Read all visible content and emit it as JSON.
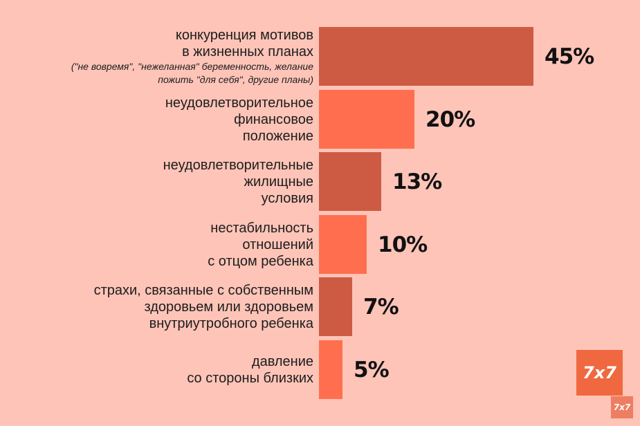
{
  "chart_data": {
    "type": "bar",
    "orientation": "horizontal",
    "title": "",
    "xlabel": "",
    "ylabel": "",
    "categories": [
      "конкуренция мотивов в жизненных планах (\"не вовремя\", \"нежеланная\" беременность, желание пожить \"для себя\", другие планы)",
      "неудовлетворительное финансовое положение",
      "неудовлетворительные жилищные условия",
      "нестабильность отношений с отцом ребенка",
      "страхи, связанные с собственным здоровьем или здоровьем внутриутробного ребенка",
      "давление со стороны близких"
    ],
    "values": [
      45,
      20,
      13,
      10,
      7,
      5
    ],
    "unit": "%",
    "grid": false,
    "legend": null
  },
  "rows": [
    {
      "lines": [
        "конкуренция мотивов",
        "в жизненных планах"
      ],
      "sub": [
        "(\"не вовремя\", \"нежеланная\" беременность, желание",
        "пожить \"для себя\", другие планы)"
      ],
      "value_label": "45%",
      "color": "#cd5b43"
    },
    {
      "lines": [
        "неудовлетворительное",
        "финансовое",
        "положение"
      ],
      "sub": [],
      "value_label": "20%",
      "color": "#ff6f4f"
    },
    {
      "lines": [
        "неудовлетворительные",
        "жилищные",
        "условия"
      ],
      "sub": [],
      "value_label": "13%",
      "color": "#cd5b43"
    },
    {
      "lines": [
        "нестабильность",
        "отношений",
        "с отцом ребенка"
      ],
      "sub": [],
      "value_label": "10%",
      "color": "#ff6f4f"
    },
    {
      "lines": [
        "страхи, связанные с собственным",
        "здоровьем или здоровьем",
        "внутриутробного ребенка"
      ],
      "sub": [],
      "value_label": "7%",
      "color": "#cd5b43"
    },
    {
      "lines": [
        "давление",
        "со стороны близких"
      ],
      "sub": [],
      "value_label": "5%",
      "color": "#ff6f4f"
    }
  ],
  "logo": {
    "text": "7x7",
    "small_text": "7x7",
    "color": "#f0683f"
  },
  "colors": {
    "background": "#fec4b8",
    "bar_dark": "#cd5b43",
    "bar_light": "#ff6f4f"
  }
}
